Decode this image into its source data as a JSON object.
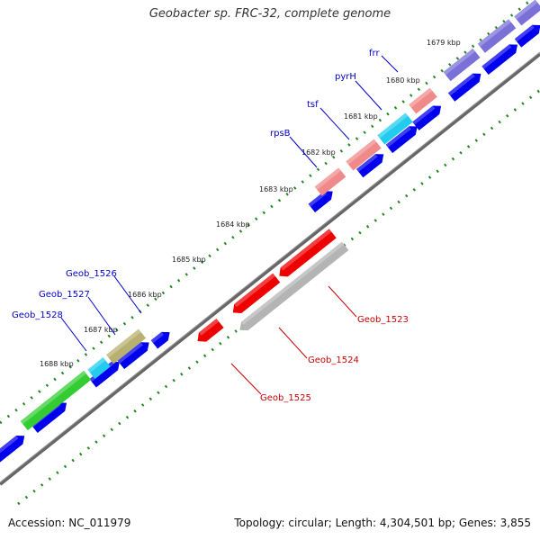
{
  "title": "Geobacter sp. FRC-32, complete genome",
  "footer": {
    "accession": "Accession: NC_011979",
    "summary": "Topology: circular; Length: 4,304,501 bp; Genes: 3,855"
  },
  "colors": {
    "gene_forward_label": "#0000cc",
    "gene_reverse_label": "#cc0000",
    "cds_blue": "#0000ee",
    "cds_red": "#ee0000",
    "cds_grey": "#b4b4b4",
    "cds_purple": "#7a70d8",
    "cds_salmon": "#f08a8a",
    "cds_cyan": "#22ccee",
    "cds_green": "#33cc33",
    "cds_olive": "#b8b070",
    "backbone": "#666666",
    "ticks": "#228822"
  },
  "ticks": [
    "1679 kbp",
    "1680 kbp",
    "1681 kbp",
    "1682 kbp",
    "1683 kbp",
    "1684 kbp",
    "1685 kbp",
    "1686 kbp",
    "1687 kbp",
    "1688 kbp"
  ],
  "gene_labels": [
    "frr",
    "pyrH",
    "tsf",
    "rpsB",
    "Geob_1526",
    "Geob_1527",
    "Geob_1528",
    "Geob_1523",
    "Geob_1524",
    "Geob_1525"
  ]
}
